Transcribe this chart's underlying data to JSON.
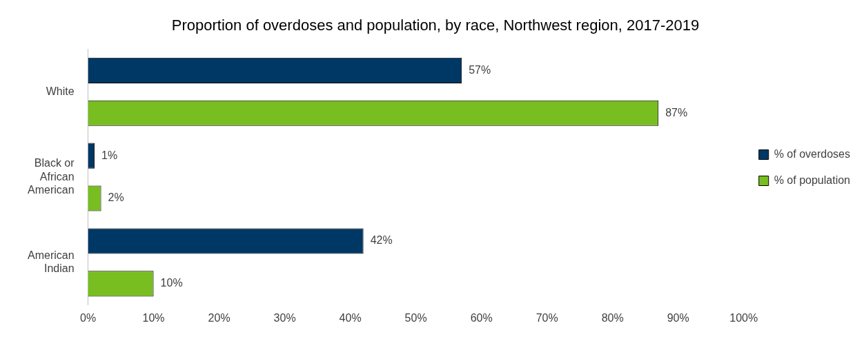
{
  "chart_data": {
    "type": "bar",
    "orientation": "horizontal",
    "title": "Proportion of overdoses and population, by race, Northwest region, 2017-2019",
    "categories": [
      "White",
      "Black or African American",
      "American Indian"
    ],
    "series": [
      {
        "name": "% of overdoses",
        "color": "#003865",
        "values": [
          57,
          1,
          42
        ],
        "value_labels": [
          "57%",
          "1%",
          "42%"
        ]
      },
      {
        "name": "% of population",
        "color": "#78be21",
        "values": [
          87,
          2,
          10
        ],
        "value_labels": [
          "87%",
          "2%",
          "10%"
        ]
      }
    ],
    "xlim": [
      0,
      100
    ],
    "xticks": [
      {
        "value": 0,
        "label": "0%"
      },
      {
        "value": 10,
        "label": "10%"
      },
      {
        "value": 20,
        "label": "20%"
      },
      {
        "value": 30,
        "label": "30%"
      },
      {
        "value": 40,
        "label": "40%"
      },
      {
        "value": 50,
        "label": "50%"
      },
      {
        "value": 60,
        "label": "60%"
      },
      {
        "value": 70,
        "label": "70%"
      },
      {
        "value": 80,
        "label": "80%"
      },
      {
        "value": 90,
        "label": "90%"
      },
      {
        "value": 100,
        "label": "100%"
      }
    ],
    "grid": false,
    "legend": "right"
  }
}
